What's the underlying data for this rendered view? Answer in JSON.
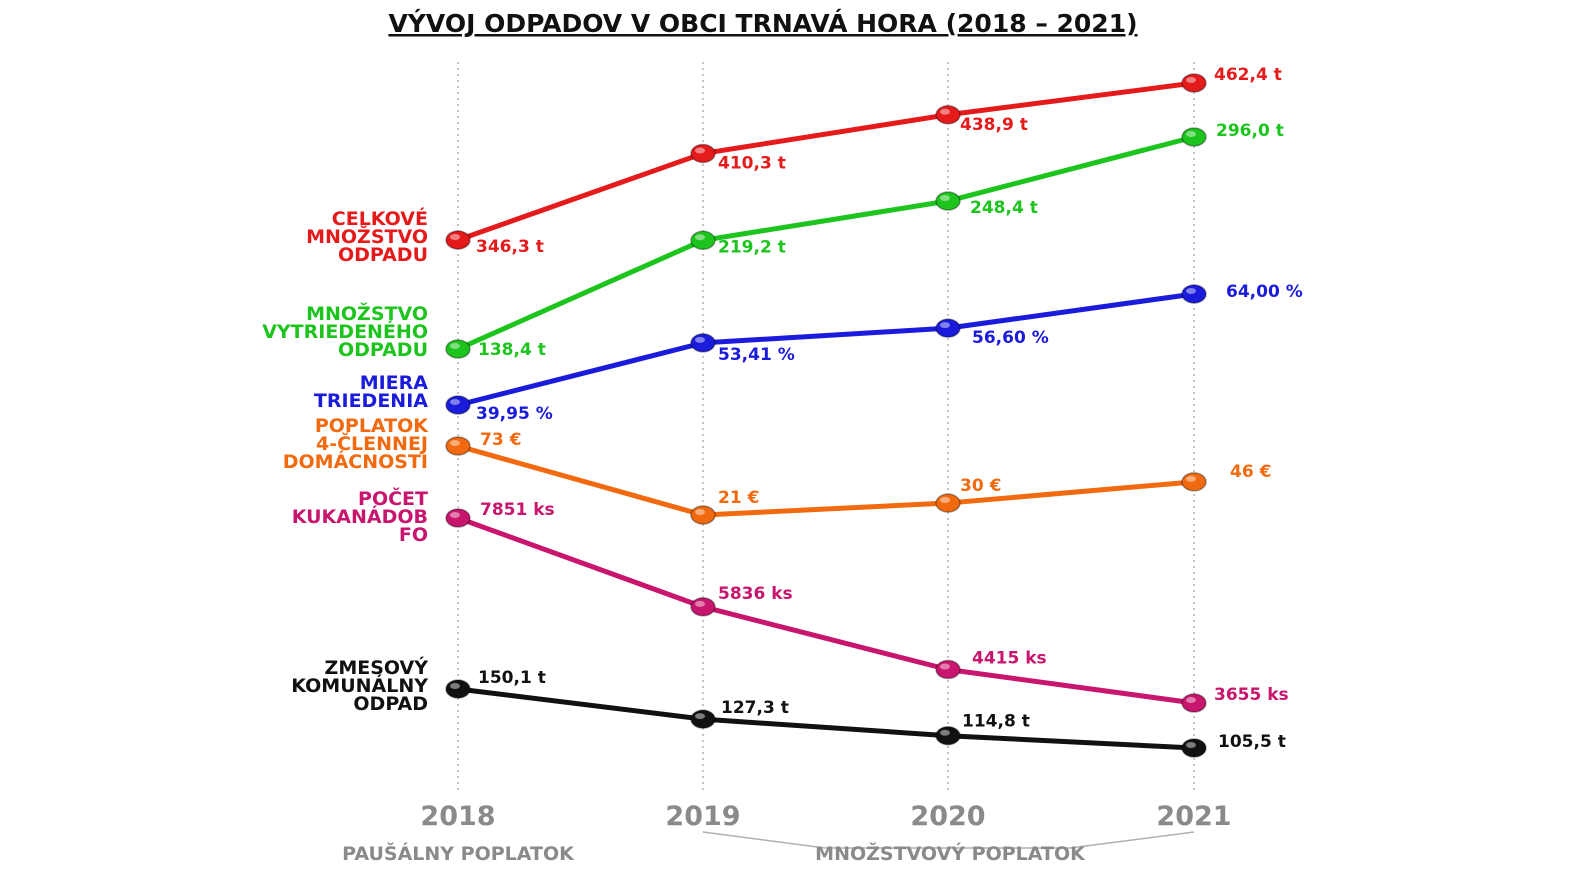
{
  "title": "VÝVOJ ODPADOV V OBCI TRNAVÁ HORA (2018 – 2021)",
  "chart_data": {
    "type": "line",
    "x": [
      "2018",
      "2019",
      "2020",
      "2021"
    ],
    "grid": "vertical dotted lines at each year",
    "series": [
      {
        "key": "celkove",
        "name": "CELKOVÉ MNOŽSTVO ODPADU",
        "name_lines": [
          "CELKOVÉ",
          "MNOŽSTVO",
          "ODPADU"
        ],
        "color": "#e51b1b",
        "values": [
          346.3,
          410.3,
          438.9,
          462.4
        ],
        "labels": [
          "346,3 t",
          "410,3 t",
          "438,9 t",
          "462,4 t"
        ]
      },
      {
        "key": "vytriedene",
        "name": "MNOŽSTVO VYTRIEDENÉHO ODPADU",
        "name_lines": [
          "MNOŽSTVO",
          "VYTRIEDENÉHO",
          "ODPADU"
        ],
        "color": "#1dc41d",
        "values": [
          138.4,
          219.2,
          248.4,
          296.0
        ],
        "labels": [
          "138,4 t",
          "219,2 t",
          "248,4 t",
          "296,0 t"
        ]
      },
      {
        "key": "miera",
        "name": "MIERA TRIEDENIA",
        "name_lines": [
          "MIERA",
          "TRIEDENIA"
        ],
        "color": "#1b1bdb",
        "values": [
          39.95,
          53.41,
          56.6,
          64.0
        ],
        "labels": [
          "39,95 %",
          "53,41 %",
          "56,60 %",
          "64,00 %"
        ]
      },
      {
        "key": "poplatok",
        "name": "POPLATOK 4-ČLENNEJ DOMÁCNOSTI",
        "name_lines": [
          "POPLATOK",
          "4-ČLENNEJ",
          "DOMÁCNOSTI"
        ],
        "color": "#f26a0f",
        "values": [
          73,
          21,
          30,
          46
        ],
        "labels": [
          "73 €",
          "21 €",
          "30 €",
          "46 €"
        ]
      },
      {
        "key": "kukanadoby",
        "name": "POČET KUKANÁDOB FO",
        "name_lines": [
          "POČET",
          "KUKANÁDOB",
          "FO"
        ],
        "color": "#c8156d",
        "values": [
          7851,
          5836,
          4415,
          3655
        ],
        "labels": [
          "7851 ks",
          "5836 ks",
          "4415 ks",
          "3655 ks"
        ]
      },
      {
        "key": "zmesovy",
        "name": "ZMESOVÝ KOMUNÁLNY ODPAD",
        "name_lines": [
          "ZMESOVÝ",
          "KOMUNÁLNY",
          "ODPAD"
        ],
        "color": "#111111",
        "values": [
          150.1,
          127.3,
          114.8,
          105.5
        ],
        "labels": [
          "150,1 t",
          "127,3 t",
          "114,8 t",
          "105,5 t"
        ]
      }
    ],
    "fee_periods": [
      {
        "label": "PAUŠÁLNY POPLATOK",
        "years": [
          "2018"
        ]
      },
      {
        "label": "MNOŽSTVOVÝ POPLATOK",
        "years": [
          "2019",
          "2020",
          "2021"
        ]
      }
    ]
  }
}
